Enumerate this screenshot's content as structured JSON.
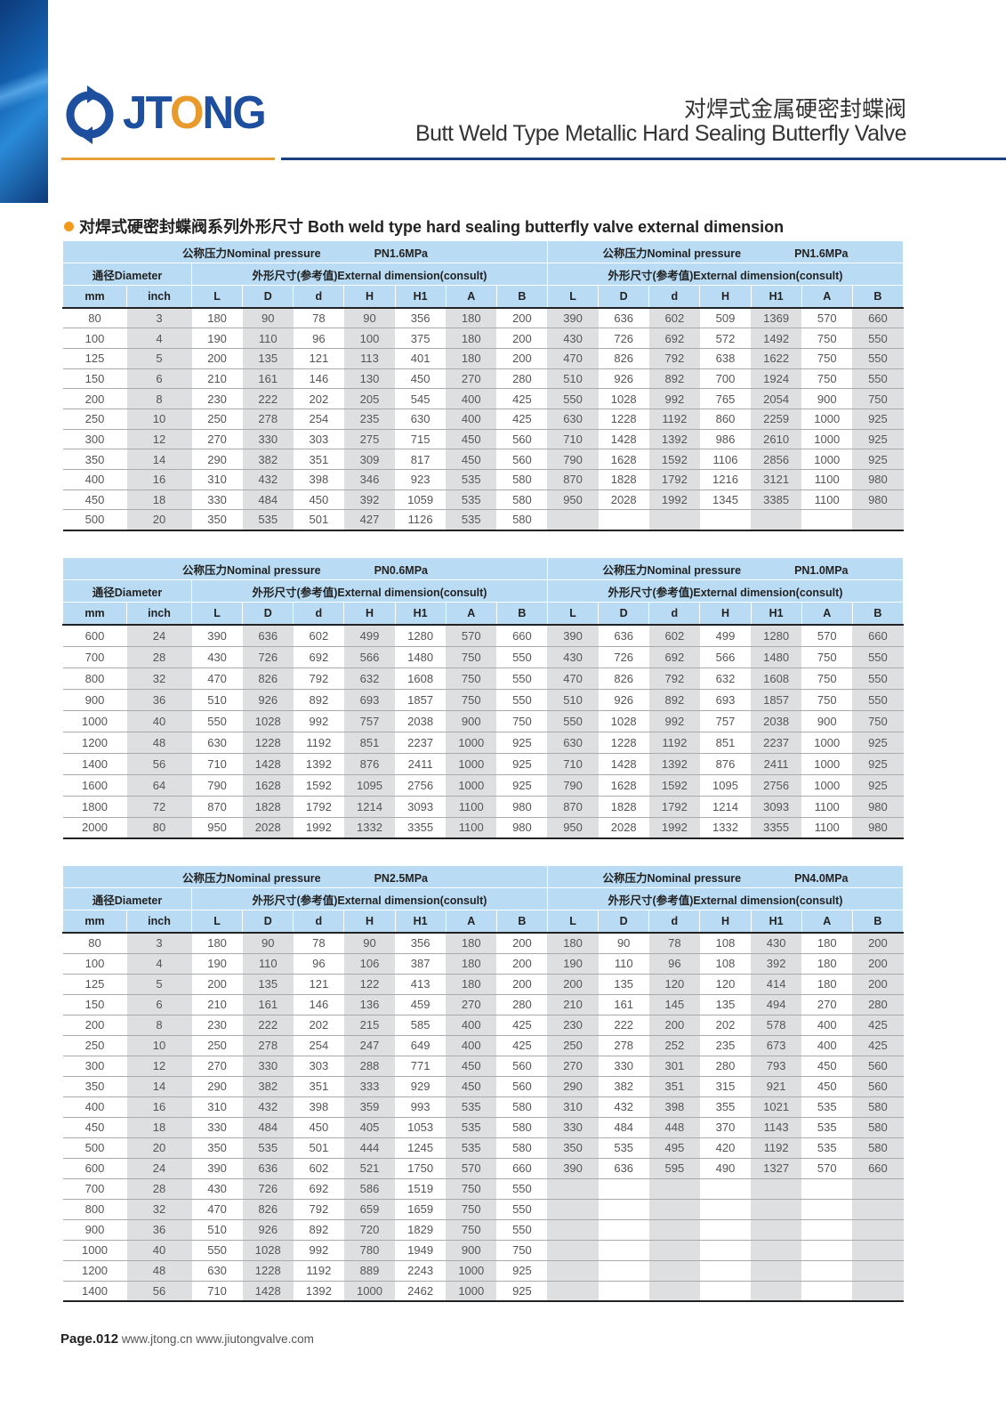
{
  "header": {
    "logo_text": "JTONG",
    "title_cn": "对焊式金属硬密封蝶阀",
    "title_en": "Butt Weld Type Metallic Hard Sealing Butterfly Valve"
  },
  "section_title": "对焊式硬密封蝶阀系列外形尺寸 Both weld type hard sealing butterfly valve external dimension",
  "labels": {
    "nominal_pressure": "公称压力Nominal pressure",
    "diameter": "通径Diameter",
    "external_dimension": "外形尺寸(参考值)External dimension(consult)",
    "columns": [
      "mm",
      "inch",
      "L",
      "D",
      "d",
      "H",
      "H1",
      "A",
      "B",
      "L",
      "D",
      "d",
      "H",
      "H1",
      "A",
      "B"
    ]
  },
  "colors": {
    "header_bg": "#b9dcf4",
    "shaded_col": "#dedfe1",
    "accent_orange": "#e8a03c",
    "brand_blue": "#1d4f9e"
  },
  "tables": [
    {
      "pressure_left": "PN1.6MPa",
      "pressure_right": "PN1.6MPa",
      "rows": [
        [
          "80",
          "3",
          "180",
          "90",
          "78",
          "90",
          "356",
          "180",
          "200",
          "390",
          "636",
          "602",
          "509",
          "1369",
          "570",
          "660"
        ],
        [
          "100",
          "4",
          "190",
          "110",
          "96",
          "100",
          "375",
          "180",
          "200",
          "430",
          "726",
          "692",
          "572",
          "1492",
          "750",
          "550"
        ],
        [
          "125",
          "5",
          "200",
          "135",
          "121",
          "113",
          "401",
          "180",
          "200",
          "470",
          "826",
          "792",
          "638",
          "1622",
          "750",
          "550"
        ],
        [
          "150",
          "6",
          "210",
          "161",
          "146",
          "130",
          "450",
          "270",
          "280",
          "510",
          "926",
          "892",
          "700",
          "1924",
          "750",
          "550"
        ],
        [
          "200",
          "8",
          "230",
          "222",
          "202",
          "205",
          "545",
          "400",
          "425",
          "550",
          "1028",
          "992",
          "765",
          "2054",
          "900",
          "750"
        ],
        [
          "250",
          "10",
          "250",
          "278",
          "254",
          "235",
          "630",
          "400",
          "425",
          "630",
          "1228",
          "1192",
          "860",
          "2259",
          "1000",
          "925"
        ],
        [
          "300",
          "12",
          "270",
          "330",
          "303",
          "275",
          "715",
          "450",
          "560",
          "710",
          "1428",
          "1392",
          "986",
          "2610",
          "1000",
          "925"
        ],
        [
          "350",
          "14",
          "290",
          "382",
          "351",
          "309",
          "817",
          "450",
          "560",
          "790",
          "1628",
          "1592",
          "1106",
          "2856",
          "1000",
          "925"
        ],
        [
          "400",
          "16",
          "310",
          "432",
          "398",
          "346",
          "923",
          "535",
          "580",
          "870",
          "1828",
          "1792",
          "1216",
          "3121",
          "1100",
          "980"
        ],
        [
          "450",
          "18",
          "330",
          "484",
          "450",
          "392",
          "1059",
          "535",
          "580",
          "950",
          "2028",
          "1992",
          "1345",
          "3385",
          "1100",
          "980"
        ],
        [
          "500",
          "20",
          "350",
          "535",
          "501",
          "427",
          "1126",
          "535",
          "580",
          "",
          "",
          "",
          "",
          "",
          "",
          ""
        ]
      ]
    },
    {
      "pressure_left": "PN0.6MPa",
      "pressure_right": "PN1.0MPa",
      "rows": [
        [
          "600",
          "24",
          "390",
          "636",
          "602",
          "499",
          "1280",
          "570",
          "660",
          "390",
          "636",
          "602",
          "499",
          "1280",
          "570",
          "660"
        ],
        [
          "700",
          "28",
          "430",
          "726",
          "692",
          "566",
          "1480",
          "750",
          "550",
          "430",
          "726",
          "692",
          "566",
          "1480",
          "750",
          "550"
        ],
        [
          "800",
          "32",
          "470",
          "826",
          "792",
          "632",
          "1608",
          "750",
          "550",
          "470",
          "826",
          "792",
          "632",
          "1608",
          "750",
          "550"
        ],
        [
          "900",
          "36",
          "510",
          "926",
          "892",
          "693",
          "1857",
          "750",
          "550",
          "510",
          "926",
          "892",
          "693",
          "1857",
          "750",
          "550"
        ],
        [
          "1000",
          "40",
          "550",
          "1028",
          "992",
          "757",
          "2038",
          "900",
          "750",
          "550",
          "1028",
          "992",
          "757",
          "2038",
          "900",
          "750"
        ],
        [
          "1200",
          "48",
          "630",
          "1228",
          "1192",
          "851",
          "2237",
          "1000",
          "925",
          "630",
          "1228",
          "1192",
          "851",
          "2237",
          "1000",
          "925"
        ],
        [
          "1400",
          "56",
          "710",
          "1428",
          "1392",
          "876",
          "2411",
          "1000",
          "925",
          "710",
          "1428",
          "1392",
          "876",
          "2411",
          "1000",
          "925"
        ],
        [
          "1600",
          "64",
          "790",
          "1628",
          "1592",
          "1095",
          "2756",
          "1000",
          "925",
          "790",
          "1628",
          "1592",
          "1095",
          "2756",
          "1000",
          "925"
        ],
        [
          "1800",
          "72",
          "870",
          "1828",
          "1792",
          "1214",
          "3093",
          "1100",
          "980",
          "870",
          "1828",
          "1792",
          "1214",
          "3093",
          "1100",
          "980"
        ],
        [
          "2000",
          "80",
          "950",
          "2028",
          "1992",
          "1332",
          "3355",
          "1100",
          "980",
          "950",
          "2028",
          "1992",
          "1332",
          "3355",
          "1100",
          "980"
        ]
      ]
    },
    {
      "pressure_left": "PN2.5MPa",
      "pressure_right": "PN4.0MPa",
      "rows": [
        [
          "80",
          "3",
          "180",
          "90",
          "78",
          "90",
          "356",
          "180",
          "200",
          "180",
          "90",
          "78",
          "108",
          "430",
          "180",
          "200"
        ],
        [
          "100",
          "4",
          "190",
          "110",
          "96",
          "106",
          "387",
          "180",
          "200",
          "190",
          "110",
          "96",
          "108",
          "392",
          "180",
          "200"
        ],
        [
          "125",
          "5",
          "200",
          "135",
          "121",
          "122",
          "413",
          "180",
          "200",
          "200",
          "135",
          "120",
          "120",
          "414",
          "180",
          "200"
        ],
        [
          "150",
          "6",
          "210",
          "161",
          "146",
          "136",
          "459",
          "270",
          "280",
          "210",
          "161",
          "145",
          "135",
          "494",
          "270",
          "280"
        ],
        [
          "200",
          "8",
          "230",
          "222",
          "202",
          "215",
          "585",
          "400",
          "425",
          "230",
          "222",
          "200",
          "202",
          "578",
          "400",
          "425"
        ],
        [
          "250",
          "10",
          "250",
          "278",
          "254",
          "247",
          "649",
          "400",
          "425",
          "250",
          "278",
          "252",
          "235",
          "673",
          "400",
          "425"
        ],
        [
          "300",
          "12",
          "270",
          "330",
          "303",
          "288",
          "771",
          "450",
          "560",
          "270",
          "330",
          "301",
          "280",
          "793",
          "450",
          "560"
        ],
        [
          "350",
          "14",
          "290",
          "382",
          "351",
          "333",
          "929",
          "450",
          "560",
          "290",
          "382",
          "351",
          "315",
          "921",
          "450",
          "560"
        ],
        [
          "400",
          "16",
          "310",
          "432",
          "398",
          "359",
          "993",
          "535",
          "580",
          "310",
          "432",
          "398",
          "355",
          "1021",
          "535",
          "580"
        ],
        [
          "450",
          "18",
          "330",
          "484",
          "450",
          "405",
          "1053",
          "535",
          "580",
          "330",
          "484",
          "448",
          "370",
          "1143",
          "535",
          "580"
        ],
        [
          "500",
          "20",
          "350",
          "535",
          "501",
          "444",
          "1245",
          "535",
          "580",
          "350",
          "535",
          "495",
          "420",
          "1192",
          "535",
          "580"
        ],
        [
          "600",
          "24",
          "390",
          "636",
          "602",
          "521",
          "1750",
          "570",
          "660",
          "390",
          "636",
          "595",
          "490",
          "1327",
          "570",
          "660"
        ],
        [
          "700",
          "28",
          "430",
          "726",
          "692",
          "586",
          "1519",
          "750",
          "550",
          "",
          "",
          "",
          "",
          "",
          "",
          ""
        ],
        [
          "800",
          "32",
          "470",
          "826",
          "792",
          "659",
          "1659",
          "750",
          "550",
          "",
          "",
          "",
          "",
          "",
          "",
          ""
        ],
        [
          "900",
          "36",
          "510",
          "926",
          "892",
          "720",
          "1829",
          "750",
          "550",
          "",
          "",
          "",
          "",
          "",
          "",
          ""
        ],
        [
          "1000",
          "40",
          "550",
          "1028",
          "992",
          "780",
          "1949",
          "900",
          "750",
          "",
          "",
          "",
          "",
          "",
          "",
          ""
        ],
        [
          "1200",
          "48",
          "630",
          "1228",
          "1192",
          "889",
          "2243",
          "1000",
          "925",
          "",
          "",
          "",
          "",
          "",
          "",
          ""
        ],
        [
          "1400",
          "56",
          "710",
          "1428",
          "1392",
          "1000",
          "2462",
          "1000",
          "925",
          "",
          "",
          "",
          "",
          "",
          "",
          ""
        ]
      ]
    }
  ],
  "footer": {
    "page": "Page.012",
    "urls": "www.jtong.cn  www.jiutongvalve.com"
  }
}
